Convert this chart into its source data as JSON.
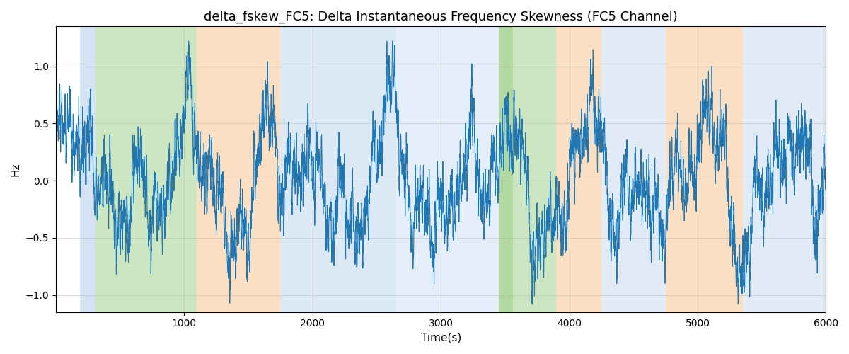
{
  "title": "delta_fskew_FC5: Delta Instantaneous Frequency Skewness (FC5 Channel)",
  "xlabel": "Time(s)",
  "ylabel": "Hz",
  "xlim": [
    0,
    6000
  ],
  "ylim": [
    -1.15,
    1.35
  ],
  "signal_color": "#1f77b4",
  "signal_linewidth": 0.8,
  "background_bands": [
    {
      "xmin": 190,
      "xmax": 310,
      "color": "#a8c8e8",
      "alpha": 0.5
    },
    {
      "xmin": 310,
      "xmax": 1100,
      "color": "#90c878",
      "alpha": 0.45
    },
    {
      "xmin": 1100,
      "xmax": 1750,
      "color": "#f4b87a",
      "alpha": 0.45
    },
    {
      "xmin": 1750,
      "xmax": 2650,
      "color": "#a8c8e8",
      "alpha": 0.4
    },
    {
      "xmin": 2650,
      "xmax": 3450,
      "color": "#a8c8e8",
      "alpha": 0.3
    },
    {
      "xmin": 3450,
      "xmax": 3560,
      "color": "#90c878",
      "alpha": 0.7
    },
    {
      "xmin": 3560,
      "xmax": 3900,
      "color": "#90c878",
      "alpha": 0.45
    },
    {
      "xmin": 3900,
      "xmax": 4250,
      "color": "#f4b87a",
      "alpha": 0.45
    },
    {
      "xmin": 4250,
      "xmax": 4750,
      "color": "#a8c8e8",
      "alpha": 0.35
    },
    {
      "xmin": 4750,
      "xmax": 5350,
      "color": "#f4b87a",
      "alpha": 0.45
    },
    {
      "xmin": 5350,
      "xmax": 6000,
      "color": "#a8c8e8",
      "alpha": 0.35
    }
  ],
  "grid_color": "#b0b0b0",
  "grid_linewidth": 0.5,
  "grid_alpha": 0.6,
  "title_fontsize": 13,
  "axis_label_fontsize": 11,
  "tick_fontsize": 10,
  "yticks": [
    -1.0,
    -0.5,
    0.0,
    0.5,
    1.0
  ],
  "xticks": [
    1000,
    2000,
    3000,
    4000,
    5000,
    6000
  ],
  "seed": 42,
  "n_points": 6001,
  "figsize": [
    12.0,
    5.0
  ],
  "dpi": 100
}
